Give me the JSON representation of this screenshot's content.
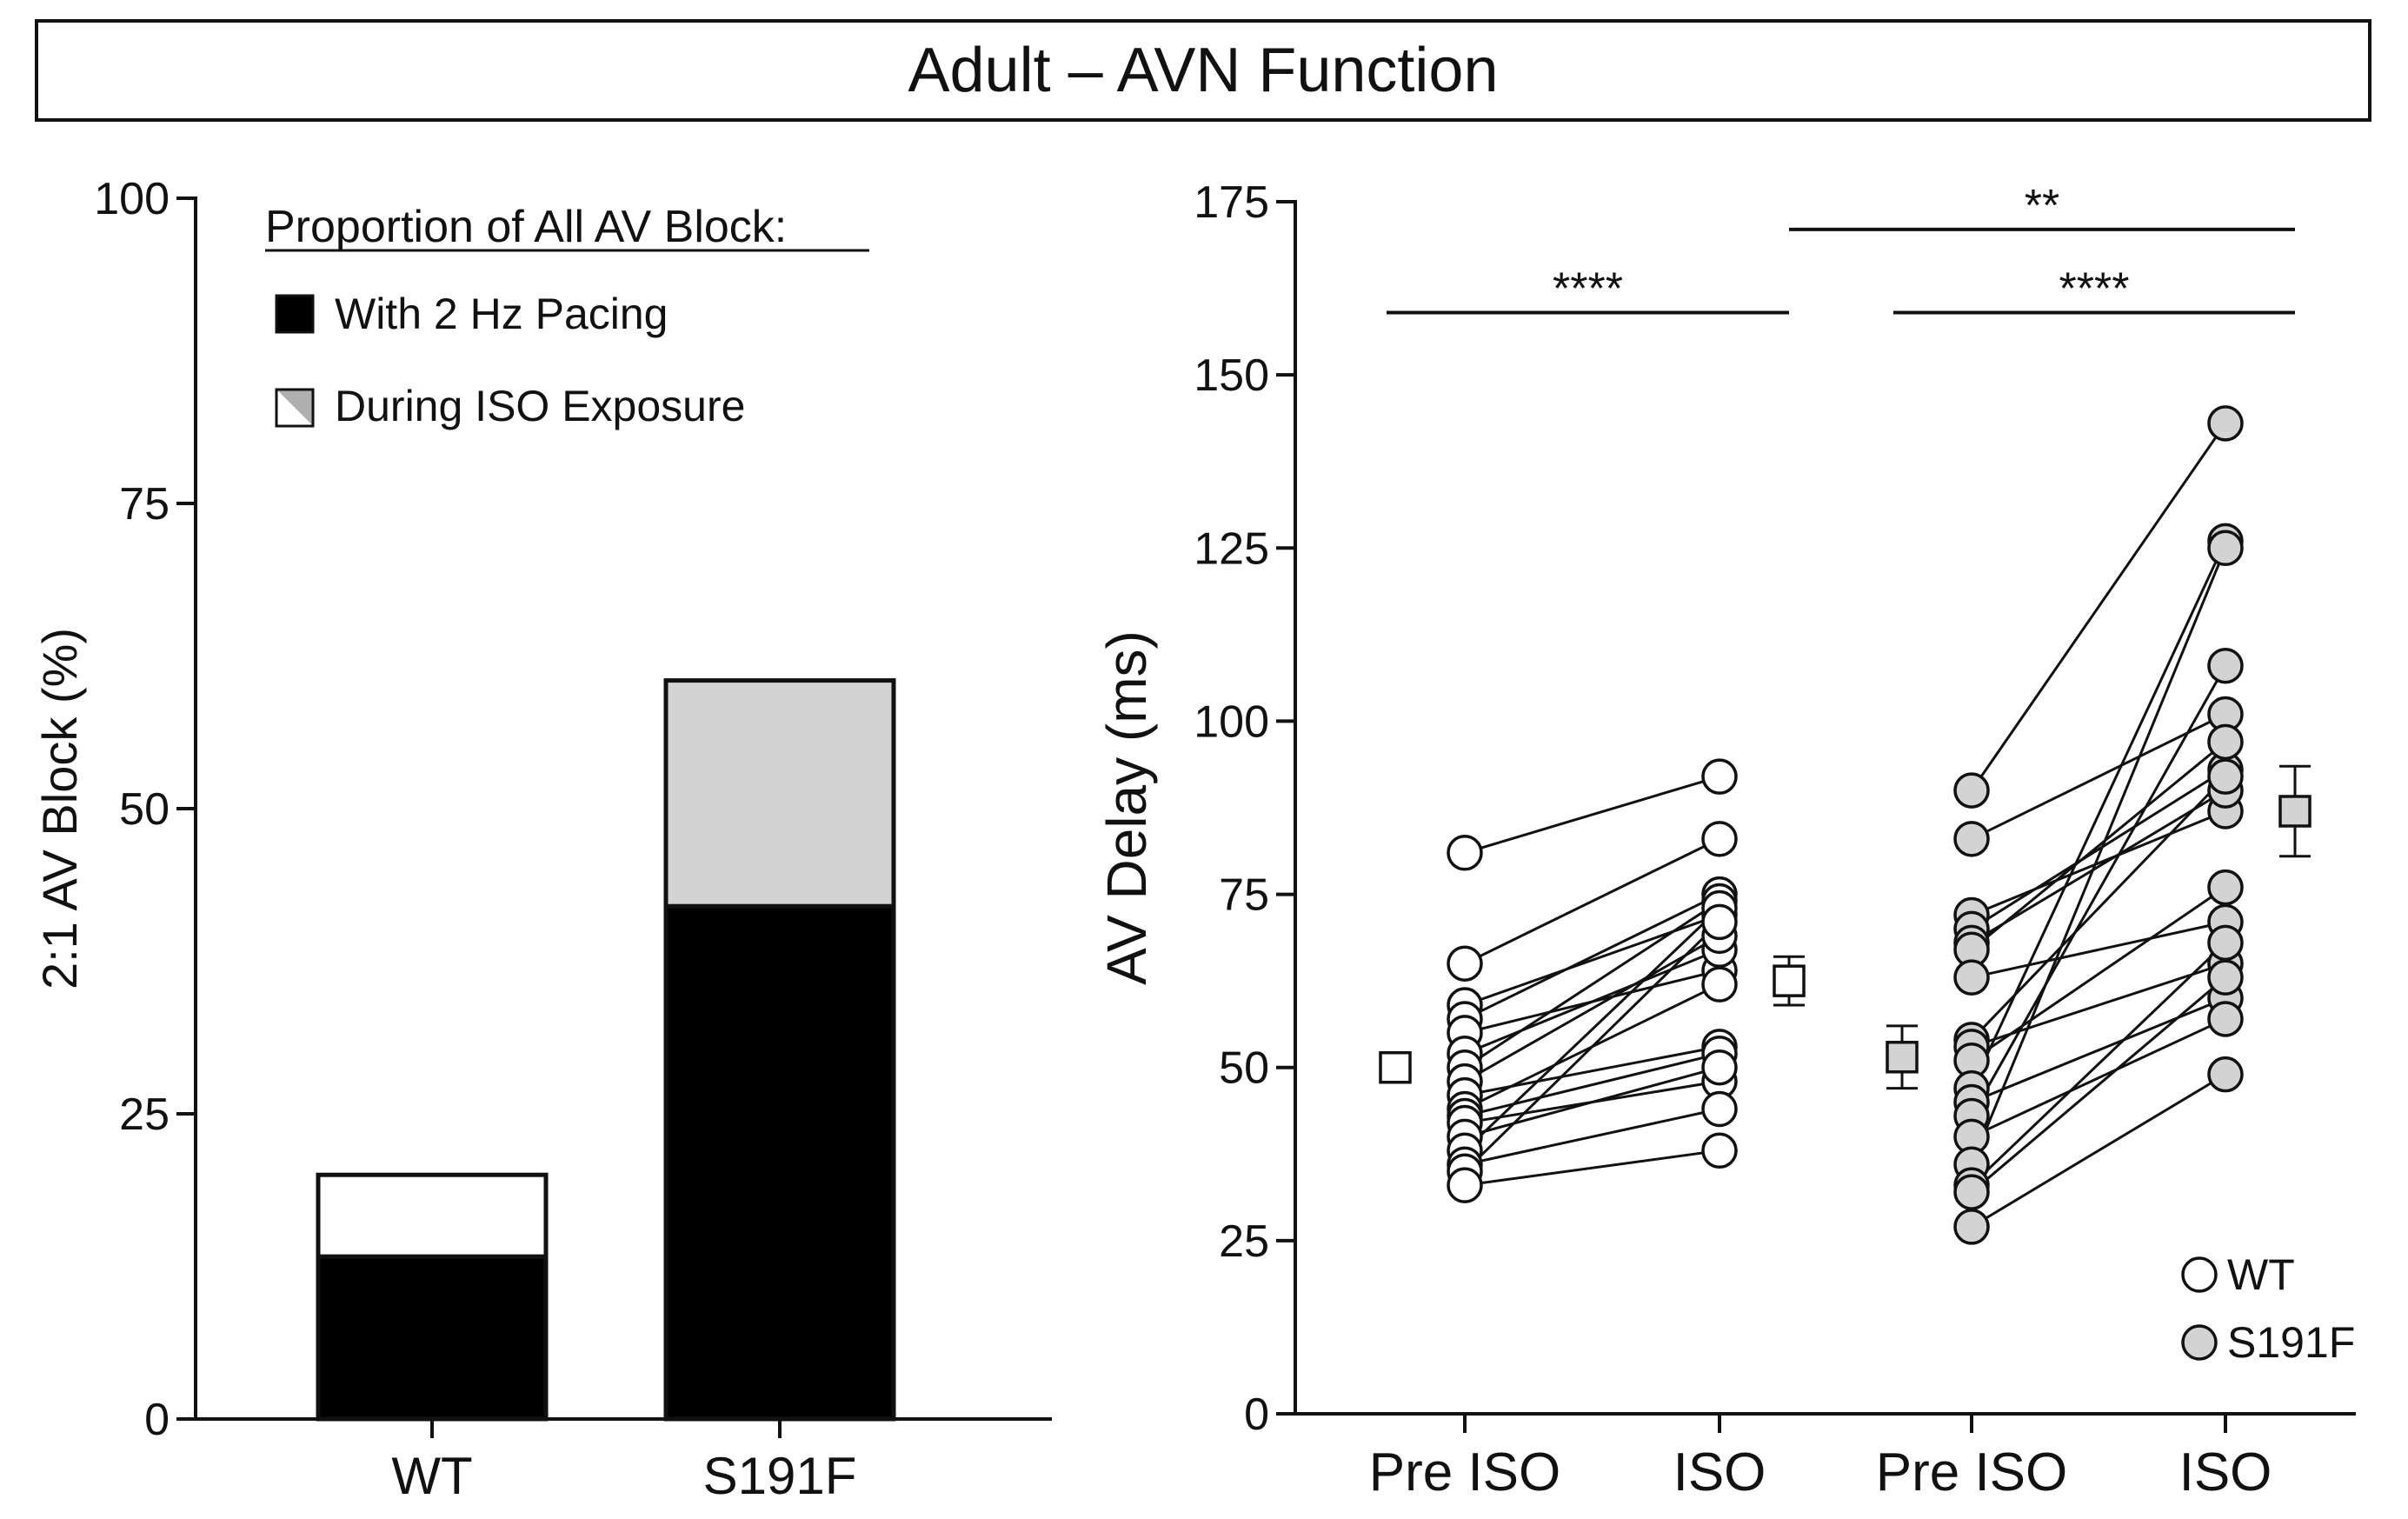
{
  "figure_title": "Adult – AVN Function",
  "chart_data": [
    {
      "type": "bar",
      "stacked": true,
      "title": "",
      "ylabel": "2:1 AV Block (%)",
      "xlabel": "",
      "ylim": [
        0,
        100
      ],
      "yticks": [
        0,
        25,
        50,
        75,
        100
      ],
      "categories": [
        "WT",
        "S191F"
      ],
      "legend_title": "Proportion of All AV Block:",
      "series": [
        {
          "name": "With 2 Hz Pacing",
          "color": "#000000",
          "values": [
            13.3,
            42
          ]
        },
        {
          "name": "During ISO Exposure",
          "color_WT": "#ffffff",
          "color_S191F": "#d3d3d3",
          "values": [
            6.7,
            18.5
          ]
        }
      ],
      "totals": [
        20,
        60.5
      ]
    },
    {
      "type": "scatter",
      "paired": true,
      "ylabel": "AV Delay (ms)",
      "ylim": [
        0,
        175
      ],
      "yticks": [
        0,
        25,
        50,
        75,
        100,
        125,
        150,
        175
      ],
      "x_labels": [
        "Pre ISO",
        "ISO",
        "Pre ISO",
        "ISO"
      ],
      "legend": [
        {
          "name": "WT",
          "fill": "#ffffff"
        },
        {
          "name": "S191F",
          "fill": "#d3d3d3"
        }
      ],
      "groups": [
        {
          "name": "WT",
          "fill": "#ffffff",
          "pre_x": 1,
          "post_x": 2,
          "pairs": [
            [
              81,
              92
            ],
            [
              65,
              83
            ],
            [
              59,
              72
            ],
            [
              57,
              75
            ],
            [
              55,
              64
            ],
            [
              52,
              67
            ],
            [
              50,
              74
            ],
            [
              48,
              69
            ],
            [
              46,
              53
            ],
            [
              44,
              62
            ],
            [
              43,
              52
            ],
            [
              42,
              48
            ],
            [
              40,
              50
            ],
            [
              38,
              73
            ],
            [
              36,
              44
            ],
            [
              35,
              71
            ],
            [
              33,
              38
            ]
          ],
          "summary": {
            "pre": {
              "mean": 50,
              "sem": 2
            },
            "post": {
              "mean": 62.5,
              "sem": 3.5
            }
          }
        },
        {
          "name": "S191F",
          "fill": "#d3d3d3",
          "pre_x": 3,
          "post_x": 4,
          "pairs": [
            [
              90,
              143
            ],
            [
              83,
              101
            ],
            [
              72,
              87
            ],
            [
              70,
              93
            ],
            [
              68,
              90
            ],
            [
              67,
              97
            ],
            [
              63,
              71
            ],
            [
              54,
              92
            ],
            [
              53,
              65
            ],
            [
              51,
              76
            ],
            [
              47,
              126
            ],
            [
              45,
              60
            ],
            [
              43,
              108
            ],
            [
              40,
              57
            ],
            [
              36,
              125
            ],
            [
              33,
              68
            ],
            [
              32,
              63
            ],
            [
              27,
              49
            ]
          ],
          "summary": {
            "pre": {
              "mean": 51.5,
              "sem": 4.5
            },
            "post": {
              "mean": 87,
              "sem": 6.5
            }
          }
        }
      ],
      "significance": [
        {
          "from_x": 1,
          "to_x": 2,
          "y": 159,
          "label": "****"
        },
        {
          "from_x": 3,
          "to_x": 4,
          "y": 159,
          "label": "****"
        },
        {
          "from_x": 2,
          "to_x": 4,
          "y": 171,
          "label": "**"
        }
      ]
    }
  ]
}
